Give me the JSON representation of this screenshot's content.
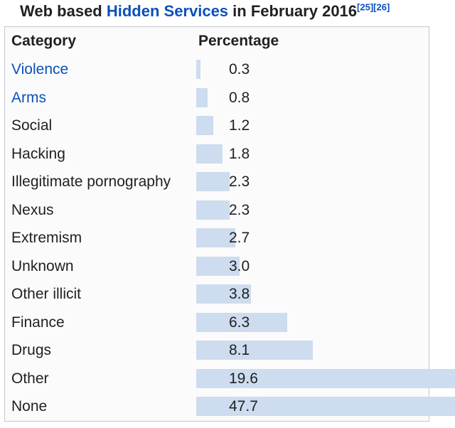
{
  "title": {
    "prefix": "Web based ",
    "link": "Hidden Services",
    "suffix": " in February 2016",
    "refs": [
      "[25]",
      "[26]"
    ]
  },
  "table": {
    "headers": {
      "category": "Category",
      "percentage": "Percentage"
    },
    "rows": [
      {
        "label": "Violence",
        "display": "0.3",
        "percent": 0.3,
        "link": true
      },
      {
        "label": "Arms",
        "display": "0.8",
        "percent": 0.8,
        "link": true
      },
      {
        "label": "Social",
        "display": "1.2",
        "percent": 1.2,
        "link": false
      },
      {
        "label": "Hacking",
        "display": "1.8",
        "percent": 1.8,
        "link": false
      },
      {
        "label": "Illegitimate pornography",
        "display": "2.3",
        "percent": 2.3,
        "link": false
      },
      {
        "label": "Nexus",
        "display": "2.3",
        "percent": 2.3,
        "link": false
      },
      {
        "label": "Extremism",
        "display": "2.7",
        "percent": 2.7,
        "link": false
      },
      {
        "label": "Unknown",
        "display": "3.0",
        "percent": 3.0,
        "link": false
      },
      {
        "label": "Other illicit",
        "display": "3.8",
        "percent": 3.8,
        "link": false
      },
      {
        "label": "Finance",
        "display": "6.3",
        "percent": 6.3,
        "link": false
      },
      {
        "label": "Drugs",
        "display": "8.1",
        "percent": 8.1,
        "link": false
      },
      {
        "label": "Other",
        "display": "19.6",
        "percent": 19.6,
        "link": false
      },
      {
        "label": "None",
        "display": "47.7",
        "percent": 47.7,
        "link": false
      }
    ]
  },
  "colors": {
    "bar": "#cddcee",
    "link": "#0b50bd",
    "border": "#c5c8cc",
    "text": "#202122",
    "box_background": "#fbfbfc"
  },
  "chart_data": {
    "type": "bar",
    "title": "Web based Hidden Services in February 2016",
    "categories": [
      "Violence",
      "Arms",
      "Social",
      "Hacking",
      "Illegitimate pornography",
      "Nexus",
      "Extremism",
      "Unknown",
      "Other illicit",
      "Finance",
      "Drugs",
      "Other",
      "None"
    ],
    "values": [
      0.3,
      0.8,
      1.2,
      1.8,
      2.3,
      2.3,
      2.7,
      3.0,
      3.8,
      6.3,
      8.1,
      19.6,
      47.7
    ],
    "xlabel": "Percentage",
    "ylabel": "Category",
    "orientation": "horizontal",
    "xlim": [
      0,
      50
    ],
    "grid": false,
    "legend": false,
    "bar_color": "#cddcee",
    "value_labels_shown": true
  }
}
